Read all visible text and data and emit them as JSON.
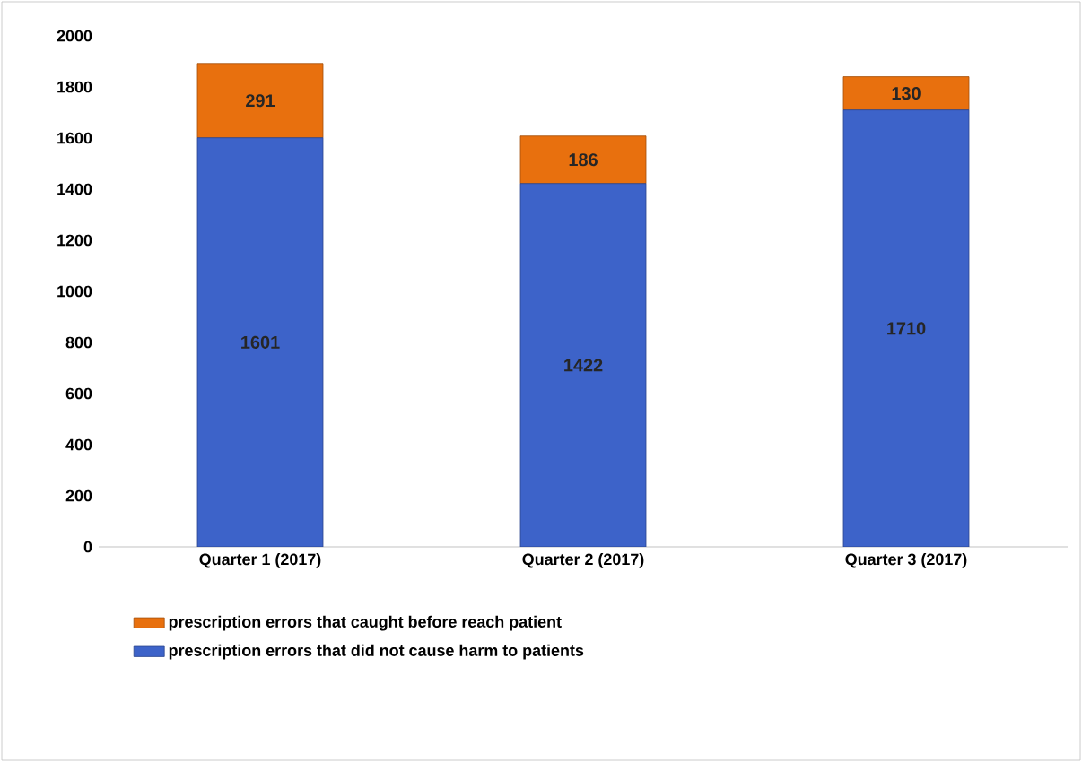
{
  "chart_data": {
    "type": "bar",
    "stacked": true,
    "categories": [
      "Quarter 1 (2017)",
      "Quarter 2 (2017)",
      "Quarter 3 (2017)"
    ],
    "series": [
      {
        "name": "prescription errors that did not cause harm to patients",
        "color": "#3d63c9",
        "values": [
          1601,
          1422,
          1710
        ]
      },
      {
        "name": "prescription errors that caught before reach patient",
        "color": "#e8700e",
        "values": [
          291,
          186,
          130
        ]
      }
    ],
    "ylim": [
      0,
      2000
    ],
    "yticks": [
      0,
      200,
      400,
      600,
      800,
      1000,
      1200,
      1400,
      1600,
      1800,
      2000
    ],
    "data_labels": true,
    "legend": "bottom",
    "grid": false
  }
}
